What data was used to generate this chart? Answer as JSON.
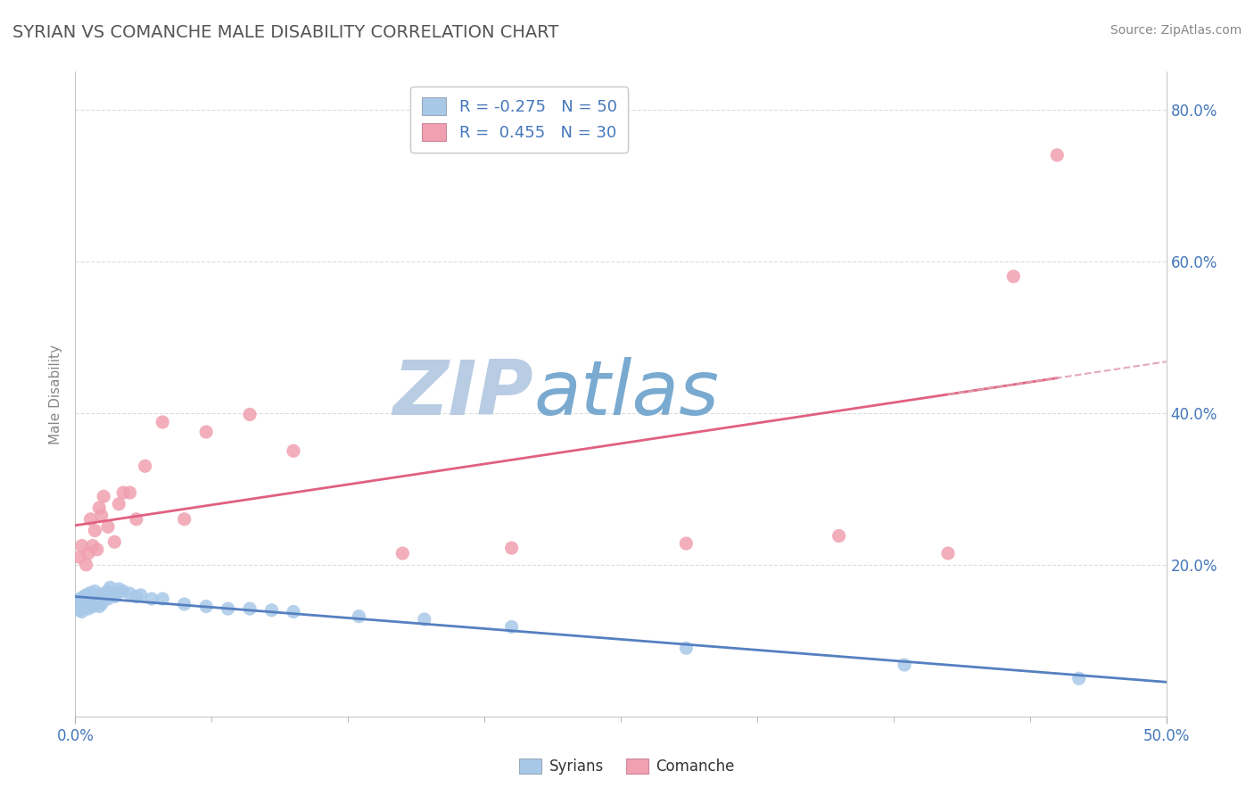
{
  "title": "SYRIAN VS COMANCHE MALE DISABILITY CORRELATION CHART",
  "source": "Source: ZipAtlas.com",
  "xlim": [
    0.0,
    0.5
  ],
  "ylim": [
    0.0,
    0.85
  ],
  "ylabel": "Male Disability",
  "syrians_R": -0.275,
  "syrians_N": 50,
  "comanche_R": 0.455,
  "comanche_N": 30,
  "blue_scatter_color": "#a8c8e8",
  "pink_scatter_color": "#f0a0b0",
  "blue_line_color": "#5580c0",
  "pink_line_color": "#e06080",
  "pink_dash_color": "#e0a0b0",
  "title_color": "#555555",
  "axis_label_color": "#4477bb",
  "background_color": "#ffffff",
  "watermark_text": "ZIPatlas",
  "watermark_color": "#ccddf0",
  "grid_color": "#dddddd",
  "syrians_x": [
    0.001,
    0.002,
    0.002,
    0.003,
    0.003,
    0.004,
    0.004,
    0.005,
    0.005,
    0.006,
    0.006,
    0.007,
    0.007,
    0.008,
    0.008,
    0.009,
    0.009,
    0.01,
    0.01,
    0.011,
    0.011,
    0.012,
    0.012,
    0.013,
    0.014,
    0.015,
    0.015,
    0.016,
    0.017,
    0.018,
    0.019,
    0.02,
    0.022,
    0.025,
    0.028,
    0.03,
    0.035,
    0.04,
    0.05,
    0.06,
    0.07,
    0.08,
    0.09,
    0.1,
    0.13,
    0.16,
    0.2,
    0.28,
    0.38,
    0.46
  ],
  "syrians_y": [
    0.148,
    0.14,
    0.155,
    0.138,
    0.152,
    0.143,
    0.158,
    0.145,
    0.16,
    0.142,
    0.157,
    0.148,
    0.163,
    0.15,
    0.145,
    0.152,
    0.165,
    0.148,
    0.155,
    0.145,
    0.16,
    0.155,
    0.148,
    0.162,
    0.158,
    0.165,
    0.155,
    0.17,
    0.16,
    0.158,
    0.162,
    0.168,
    0.165,
    0.162,
    0.158,
    0.16,
    0.155,
    0.155,
    0.148,
    0.145,
    0.142,
    0.142,
    0.14,
    0.138,
    0.132,
    0.128,
    0.118,
    0.09,
    0.068,
    0.05
  ],
  "comanche_x": [
    0.002,
    0.003,
    0.005,
    0.006,
    0.007,
    0.008,
    0.009,
    0.01,
    0.011,
    0.012,
    0.013,
    0.015,
    0.018,
    0.02,
    0.022,
    0.025,
    0.028,
    0.032,
    0.04,
    0.05,
    0.06,
    0.08,
    0.1,
    0.15,
    0.2,
    0.28,
    0.35,
    0.4,
    0.43,
    0.45
  ],
  "comanche_y": [
    0.21,
    0.225,
    0.2,
    0.215,
    0.26,
    0.225,
    0.245,
    0.22,
    0.275,
    0.265,
    0.29,
    0.25,
    0.23,
    0.28,
    0.295,
    0.295,
    0.26,
    0.33,
    0.388,
    0.26,
    0.375,
    0.398,
    0.35,
    0.215,
    0.222,
    0.228,
    0.238,
    0.215,
    0.58,
    0.74
  ]
}
